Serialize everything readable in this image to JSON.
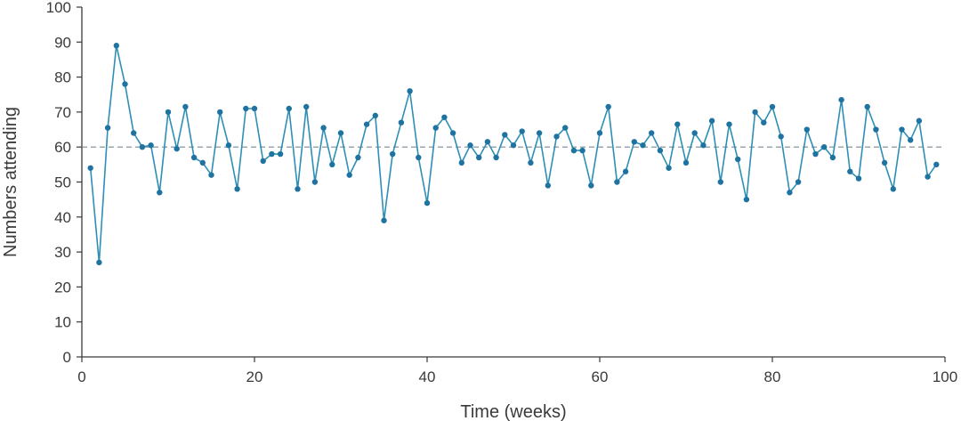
{
  "chart_data": {
    "type": "line",
    "title": "",
    "xlabel": "Time (weeks)",
    "ylabel": "Numbers attending",
    "xlim": [
      0,
      100
    ],
    "ylim": [
      0,
      100
    ],
    "xticks": [
      0,
      20,
      40,
      60,
      80,
      100
    ],
    "yticks": [
      0,
      10,
      20,
      30,
      40,
      50,
      60,
      70,
      80,
      90,
      100
    ],
    "reference_line": {
      "y": 60,
      "style": "dashed"
    },
    "grid": false,
    "colors": {
      "line": "#2e8fb5",
      "marker": "#1f73a1",
      "reference": "#7a8a93",
      "axis": "#3a3a3a"
    },
    "series": [
      {
        "x": [
          1,
          2,
          3,
          4,
          5,
          6,
          7,
          8,
          9,
          10,
          11,
          12,
          13,
          14,
          15,
          16,
          17,
          18,
          19,
          20,
          21,
          22,
          23,
          24,
          25,
          26,
          27,
          28,
          29,
          30,
          31,
          32,
          33,
          34,
          35,
          36,
          37,
          38,
          39,
          40,
          41,
          42,
          43,
          44,
          45,
          46,
          47,
          48,
          49,
          50,
          51,
          52,
          53,
          54,
          55,
          56,
          57,
          58,
          59,
          60,
          61,
          62,
          63,
          64,
          65,
          66,
          67,
          68,
          69,
          70,
          71,
          72,
          73,
          74,
          75,
          76,
          77,
          78,
          79,
          80,
          81,
          82,
          83,
          84,
          85,
          86,
          87,
          88,
          89,
          90,
          91,
          92,
          93,
          94,
          95,
          96,
          97,
          98,
          99
        ],
        "values": [
          54,
          27,
          65.5,
          89,
          78,
          64,
          60,
          60.5,
          47,
          70,
          59.5,
          71.5,
          57,
          55.5,
          52,
          70,
          60.5,
          48,
          71,
          71,
          56,
          58,
          58,
          71,
          48,
          71.5,
          50,
          65.5,
          55,
          64,
          52,
          57,
          66.5,
          69,
          39,
          58,
          67,
          76,
          57,
          44,
          65.5,
          68.5,
          64,
          55.5,
          60.5,
          57,
          61.5,
          57,
          63.5,
          60.5,
          64.5,
          55.5,
          64,
          49,
          63,
          65.5,
          59,
          59,
          49,
          64,
          71.5,
          50,
          53,
          61.5,
          60.5,
          64,
          59,
          54,
          66.5,
          55.5,
          64,
          60.5,
          67.5,
          50,
          66.5,
          56.5,
          45,
          70,
          67,
          71.5,
          63,
          47,
          50,
          65,
          58,
          60,
          57,
          73.5,
          53,
          51,
          71.5,
          65,
          55.5,
          48,
          65,
          62,
          67.5,
          51.5,
          55
        ]
      }
    ]
  }
}
